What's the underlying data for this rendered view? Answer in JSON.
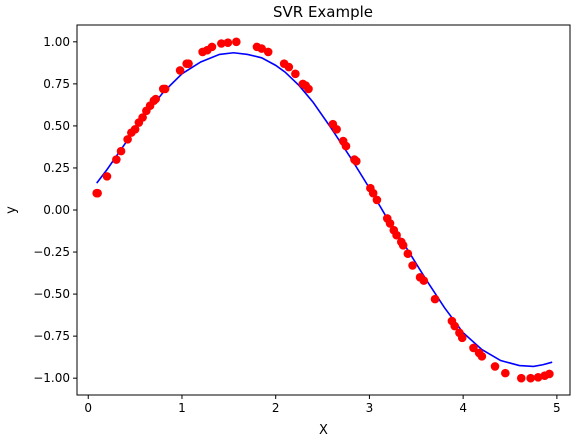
{
  "chart_data": {
    "type": "scatter",
    "title": "SVR Example",
    "xlabel": "X",
    "ylabel": "y",
    "xlim": [
      -0.12,
      5.14
    ],
    "ylim": [
      -1.1,
      1.1
    ],
    "xticks": [
      0,
      1,
      2,
      3,
      4,
      5
    ],
    "yticks": [
      -1.0,
      -0.75,
      -0.5,
      -0.25,
      0.0,
      0.25,
      0.5,
      0.75,
      1.0
    ],
    "xtick_labels": [
      "0",
      "1",
      "2",
      "3",
      "4",
      "5"
    ],
    "ytick_labels": [
      "−1.00",
      "−0.75",
      "−0.50",
      "−0.25",
      "0.00",
      "0.25",
      "0.50",
      "0.75",
      "1.00"
    ],
    "grid": false,
    "legend": "none",
    "colors": {
      "scatter": "#ff0000",
      "line": "#0000ff",
      "axes": "#000000"
    },
    "series": [
      {
        "kind": "scatter",
        "points": [
          [
            0.09,
            0.1
          ],
          [
            0.1,
            0.1
          ],
          [
            0.2,
            0.2
          ],
          [
            0.3,
            0.3
          ],
          [
            0.35,
            0.35
          ],
          [
            0.42,
            0.42
          ],
          [
            0.46,
            0.46
          ],
          [
            0.5,
            0.48
          ],
          [
            0.54,
            0.52
          ],
          [
            0.58,
            0.55
          ],
          [
            0.62,
            0.59
          ],
          [
            0.66,
            0.62
          ],
          [
            0.7,
            0.65
          ],
          [
            0.72,
            0.66
          ],
          [
            0.8,
            0.72
          ],
          [
            0.82,
            0.72
          ],
          [
            0.98,
            0.83
          ],
          [
            1.05,
            0.87
          ],
          [
            1.07,
            0.87
          ],
          [
            1.22,
            0.94
          ],
          [
            1.27,
            0.95
          ],
          [
            1.32,
            0.97
          ],
          [
            1.42,
            0.99
          ],
          [
            1.49,
            0.995
          ],
          [
            1.58,
            1.0
          ],
          [
            1.8,
            0.97
          ],
          [
            1.85,
            0.96
          ],
          [
            1.92,
            0.94
          ],
          [
            2.09,
            0.87
          ],
          [
            2.14,
            0.85
          ],
          [
            2.21,
            0.81
          ],
          [
            2.29,
            0.75
          ],
          [
            2.32,
            0.74
          ],
          [
            2.35,
            0.72
          ],
          [
            2.61,
            0.51
          ],
          [
            2.65,
            0.48
          ],
          [
            2.72,
            0.41
          ],
          [
            2.75,
            0.38
          ],
          [
            2.84,
            0.3
          ],
          [
            2.86,
            0.29
          ],
          [
            3.01,
            0.13
          ],
          [
            3.04,
            0.1
          ],
          [
            3.08,
            0.06
          ],
          [
            3.19,
            -0.05
          ],
          [
            3.22,
            -0.08
          ],
          [
            3.26,
            -0.12
          ],
          [
            3.29,
            -0.15
          ],
          [
            3.34,
            -0.19
          ],
          [
            3.36,
            -0.21
          ],
          [
            3.41,
            -0.26
          ],
          [
            3.46,
            -0.33
          ],
          [
            3.54,
            -0.4
          ],
          [
            3.58,
            -0.42
          ],
          [
            3.7,
            -0.53
          ],
          [
            3.88,
            -0.66
          ],
          [
            3.91,
            -0.69
          ],
          [
            3.96,
            -0.73
          ],
          [
            3.99,
            -0.76
          ],
          [
            4.11,
            -0.82
          ],
          [
            4.17,
            -0.85
          ],
          [
            4.2,
            -0.87
          ],
          [
            4.34,
            -0.93
          ],
          [
            4.45,
            -0.97
          ],
          [
            4.62,
            -1.0
          ],
          [
            4.72,
            -1.0
          ],
          [
            4.8,
            -0.995
          ],
          [
            4.87,
            -0.985
          ],
          [
            4.92,
            -0.975
          ]
        ]
      },
      {
        "kind": "line",
        "points": [
          [
            0.09,
            0.16
          ],
          [
            0.2,
            0.24
          ],
          [
            0.4,
            0.4
          ],
          [
            0.6,
            0.56
          ],
          [
            0.8,
            0.7
          ],
          [
            1.0,
            0.81
          ],
          [
            1.2,
            0.88
          ],
          [
            1.4,
            0.925
          ],
          [
            1.55,
            0.935
          ],
          [
            1.7,
            0.925
          ],
          [
            1.85,
            0.905
          ],
          [
            2.0,
            0.86
          ],
          [
            2.1,
            0.82
          ],
          [
            2.25,
            0.74
          ],
          [
            2.4,
            0.64
          ],
          [
            2.6,
            0.48
          ],
          [
            2.8,
            0.31
          ],
          [
            3.0,
            0.13
          ],
          [
            3.2,
            -0.06
          ],
          [
            3.4,
            -0.23
          ],
          [
            3.6,
            -0.41
          ],
          [
            3.8,
            -0.58
          ],
          [
            4.0,
            -0.73
          ],
          [
            4.2,
            -0.83
          ],
          [
            4.4,
            -0.895
          ],
          [
            4.6,
            -0.925
          ],
          [
            4.75,
            -0.93
          ],
          [
            4.85,
            -0.92
          ],
          [
            4.95,
            -0.905
          ]
        ]
      }
    ]
  }
}
